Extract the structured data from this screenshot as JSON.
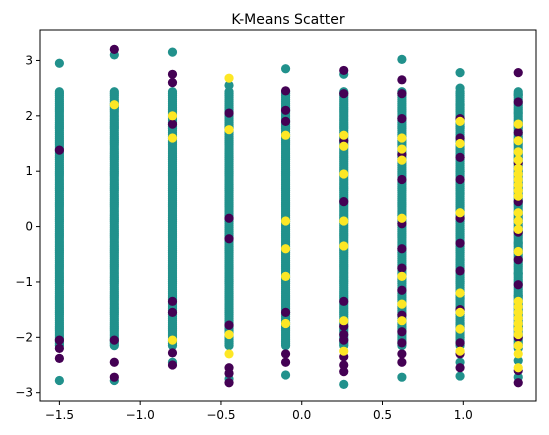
{
  "chart_data": {
    "type": "scatter",
    "title": "K-Means Scatter",
    "xlabel": "",
    "ylabel": "",
    "xlim": [
      -1.62,
      1.45
    ],
    "ylim": [
      -3.15,
      3.55
    ],
    "xticks": [
      -1.5,
      -1.0,
      -0.5,
      0.0,
      0.5,
      1.0
    ],
    "xtick_labels": [
      "−1.5",
      "−1.0",
      "−0.5",
      "0.0",
      "0.5",
      "1.0"
    ],
    "yticks": [
      -3,
      -2,
      -1,
      0,
      1,
      2,
      3
    ],
    "ytick_labels": [
      "−3",
      "−2",
      "−1",
      "0",
      "1",
      "2",
      "3"
    ],
    "grid": false,
    "legend": "none",
    "cluster_colors": [
      "#440154",
      "#21918c",
      "#fde725"
    ],
    "x_positions": [
      -1.5,
      -1.16,
      -0.8,
      -0.45,
      -0.1,
      0.26,
      0.62,
      0.98,
      1.34
    ],
    "series": [
      {
        "cluster": 0,
        "points": [
          [
            -1.5,
            1.38
          ],
          [
            -1.5,
            -2.05
          ],
          [
            -1.5,
            -2.2
          ],
          [
            -1.5,
            -2.38
          ],
          [
            -1.16,
            3.2
          ],
          [
            -1.16,
            -2.05
          ],
          [
            -1.16,
            -2.45
          ],
          [
            -1.16,
            -2.72
          ],
          [
            -0.8,
            2.75
          ],
          [
            -0.8,
            2.6
          ],
          [
            -0.8,
            1.85
          ],
          [
            -0.8,
            -1.35
          ],
          [
            -0.8,
            -1.55
          ],
          [
            -0.8,
            -2.28
          ],
          [
            -0.8,
            -2.5
          ],
          [
            -0.45,
            2.05
          ],
          [
            -0.45,
            0.15
          ],
          [
            -0.45,
            -0.22
          ],
          [
            -0.45,
            -1.78
          ],
          [
            -0.45,
            -2.55
          ],
          [
            -0.45,
            -2.65
          ],
          [
            -0.45,
            -2.82
          ],
          [
            -0.1,
            2.45
          ],
          [
            -0.1,
            2.1
          ],
          [
            -0.1,
            1.9
          ],
          [
            -0.1,
            -1.55
          ],
          [
            -0.1,
            -2.3
          ],
          [
            -0.1,
            -2.45
          ],
          [
            0.26,
            2.82
          ],
          [
            0.26,
            2.4
          ],
          [
            0.26,
            1.55
          ],
          [
            0.26,
            0.45
          ],
          [
            0.26,
            -1.35
          ],
          [
            0.26,
            -1.8
          ],
          [
            0.26,
            -1.95
          ],
          [
            0.26,
            -2.05
          ],
          [
            0.26,
            -2.35
          ],
          [
            0.26,
            -2.5
          ],
          [
            0.26,
            -2.62
          ],
          [
            0.62,
            2.65
          ],
          [
            0.62,
            2.4
          ],
          [
            0.62,
            1.95
          ],
          [
            0.62,
            1.3
          ],
          [
            0.62,
            0.85
          ],
          [
            0.62,
            0.05
          ],
          [
            0.62,
            -0.4
          ],
          [
            0.62,
            -0.75
          ],
          [
            0.62,
            -1.15
          ],
          [
            0.62,
            -1.6
          ],
          [
            0.62,
            -1.9
          ],
          [
            0.62,
            -2.1
          ],
          [
            0.62,
            -2.3
          ],
          [
            0.62,
            -2.45
          ],
          [
            0.98,
            1.95
          ],
          [
            0.98,
            1.6
          ],
          [
            0.98,
            1.25
          ],
          [
            0.98,
            0.85
          ],
          [
            0.98,
            0.15
          ],
          [
            0.98,
            -0.3
          ],
          [
            0.98,
            -0.8
          ],
          [
            0.98,
            -1.5
          ],
          [
            0.98,
            -2.1
          ],
          [
            0.98,
            -2.3
          ],
          [
            0.98,
            -2.55
          ],
          [
            1.34,
            2.78
          ],
          [
            1.34,
            2.25
          ],
          [
            1.34,
            1.7
          ],
          [
            1.34,
            1.15
          ],
          [
            1.34,
            0.45
          ],
          [
            1.34,
            -0.1
          ],
          [
            1.34,
            -0.6
          ],
          [
            1.34,
            -1.05
          ],
          [
            1.34,
            -2.0
          ],
          [
            1.34,
            -2.6
          ],
          [
            1.34,
            -2.82
          ]
        ]
      },
      {
        "cluster": 1,
        "points": [
          [
            -1.5,
            2.95
          ],
          [
            -1.5,
            -2.78
          ],
          [
            -1.16,
            3.1
          ],
          [
            -1.16,
            -2.78
          ],
          [
            -0.8,
            3.15
          ],
          [
            -0.8,
            -2.45
          ],
          [
            -0.45,
            2.55
          ],
          [
            -0.45,
            -2.75
          ],
          [
            -0.1,
            2.85
          ],
          [
            -0.1,
            -2.68
          ],
          [
            0.26,
            2.75
          ],
          [
            0.26,
            -2.85
          ],
          [
            0.62,
            3.02
          ],
          [
            0.62,
            -2.72
          ],
          [
            0.98,
            2.78
          ],
          [
            0.98,
            2.5
          ],
          [
            0.98,
            2.2
          ],
          [
            0.98,
            1.8
          ],
          [
            0.98,
            1.4
          ],
          [
            0.98,
            1.0
          ],
          [
            0.98,
            0.6
          ],
          [
            0.98,
            0.3
          ],
          [
            0.98,
            -0.05
          ],
          [
            0.98,
            -0.6
          ],
          [
            0.98,
            -1.0
          ],
          [
            0.98,
            -1.3
          ],
          [
            0.98,
            -1.75
          ],
          [
            0.98,
            -2.0
          ],
          [
            0.98,
            -2.45
          ],
          [
            0.98,
            -2.7
          ],
          [
            1.34,
            2.38
          ],
          [
            1.34,
            2.05
          ],
          [
            1.34,
            1.85
          ],
          [
            1.34,
            1.55
          ],
          [
            1.34,
            -0.3
          ],
          [
            1.34,
            -0.85
          ],
          [
            1.34,
            -1.25
          ],
          [
            1.34,
            -1.8
          ],
          [
            1.34,
            -2.2
          ],
          [
            1.34,
            -2.42
          ],
          [
            1.34,
            -2.72
          ]
        ]
      },
      {
        "cluster": 2,
        "points": [
          [
            -1.16,
            2.2
          ],
          [
            -0.8,
            2.0
          ],
          [
            -0.8,
            1.6
          ],
          [
            -0.8,
            -2.05
          ],
          [
            -0.45,
            2.68
          ],
          [
            -0.45,
            1.75
          ],
          [
            -0.45,
            -1.95
          ],
          [
            -0.45,
            -2.3
          ],
          [
            -0.1,
            1.65
          ],
          [
            -0.1,
            0.1
          ],
          [
            -0.1,
            -0.4
          ],
          [
            -0.1,
            -0.9
          ],
          [
            -0.1,
            -1.75
          ],
          [
            0.26,
            1.65
          ],
          [
            0.26,
            1.45
          ],
          [
            0.26,
            0.95
          ],
          [
            0.26,
            0.1
          ],
          [
            0.26,
            -0.35
          ],
          [
            0.26,
            -1.7
          ],
          [
            0.26,
            -2.25
          ],
          [
            0.62,
            1.6
          ],
          [
            0.62,
            1.4
          ],
          [
            0.62,
            1.2
          ],
          [
            0.62,
            0.15
          ],
          [
            0.62,
            -0.9
          ],
          [
            0.62,
            -1.4
          ],
          [
            0.62,
            -1.7
          ],
          [
            0.98,
            1.9
          ],
          [
            0.98,
            1.5
          ],
          [
            0.98,
            0.25
          ],
          [
            0.98,
            -1.2
          ],
          [
            0.98,
            -1.55
          ],
          [
            0.98,
            -1.85
          ],
          [
            0.98,
            -2.25
          ],
          [
            1.34,
            1.85
          ],
          [
            1.34,
            1.55
          ],
          [
            1.34,
            1.35
          ],
          [
            1.34,
            1.2
          ],
          [
            1.34,
            1.05
          ],
          [
            1.34,
            0.95
          ],
          [
            1.34,
            0.85
          ],
          [
            1.34,
            0.75
          ],
          [
            1.34,
            0.65
          ],
          [
            1.34,
            0.55
          ],
          [
            1.34,
            0.25
          ],
          [
            1.34,
            0.1
          ],
          [
            1.34,
            -0.05
          ],
          [
            1.34,
            -0.45
          ],
          [
            1.34,
            -1.35
          ],
          [
            1.34,
            -1.45
          ],
          [
            1.34,
            -1.55
          ],
          [
            1.34,
            -1.65
          ],
          [
            1.34,
            -1.75
          ],
          [
            1.34,
            -1.85
          ],
          [
            1.34,
            -1.95
          ],
          [
            1.34,
            -2.15
          ],
          [
            1.34,
            -2.3
          ],
          [
            1.34,
            -2.55
          ]
        ]
      }
    ]
  }
}
